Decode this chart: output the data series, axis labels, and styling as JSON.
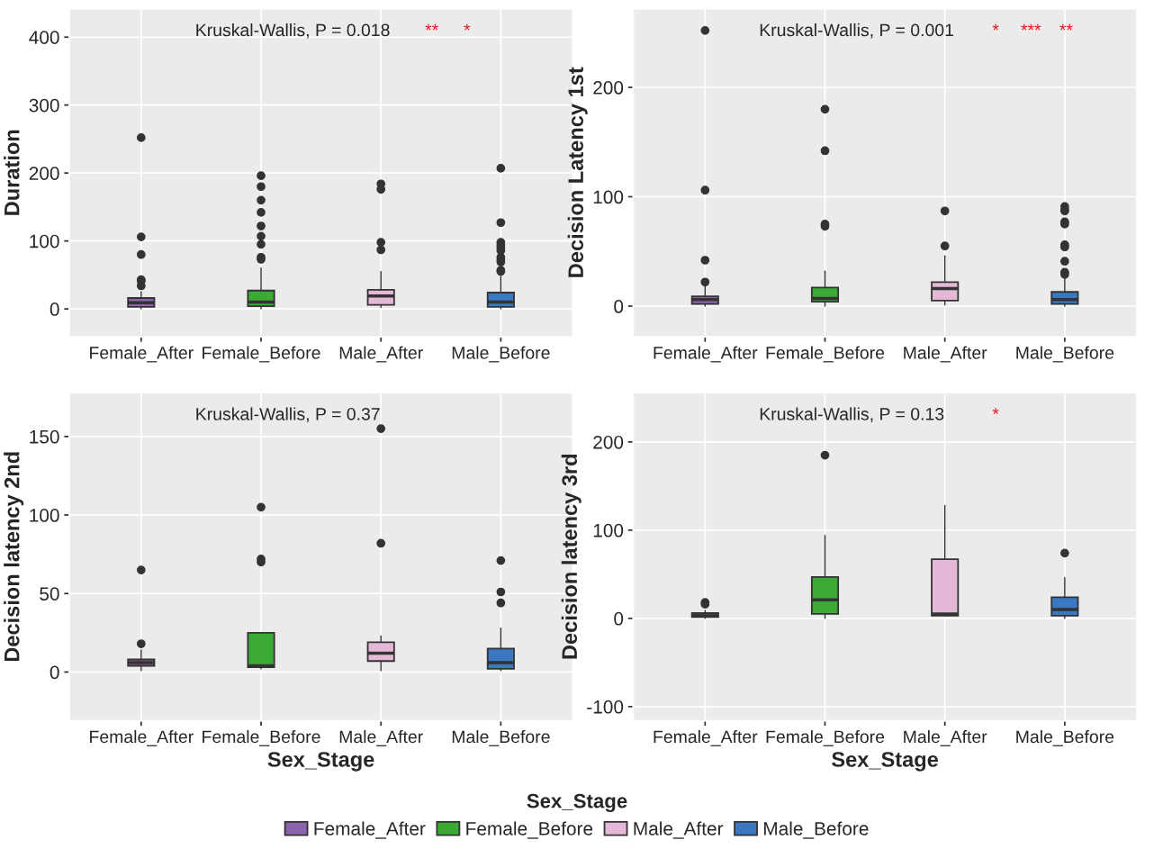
{
  "chart_data": [
    {
      "type": "box",
      "ylabel": "Duration",
      "categories": [
        "Female_After",
        "Female_Before",
        "Male_After",
        "Male_Before"
      ],
      "series": [
        {
          "color": "#8a63ac",
          "boxes": [
            {
              "low": 0,
              "q1": 3,
              "median": 9,
              "q3": 16,
              "high": 25,
              "outliers": [
                252,
                106,
                80,
                43,
                41,
                34
              ]
            },
            null,
            null,
            null
          ]
        },
        {
          "color": "#3aaa35",
          "boxes": [
            null,
            {
              "low": 0,
              "q1": 4,
              "median": 10,
              "q3": 27,
              "high": 60,
              "outliers": [
                196,
                180,
                160,
                142,
                122,
                107,
                95,
                76,
                73
              ]
            },
            null,
            null
          ]
        },
        {
          "color": "#e5b8d8",
          "boxes": [
            null,
            null,
            {
              "low": 2,
              "q1": 6,
              "median": 19,
              "q3": 28,
              "high": 55,
              "outliers": [
                184,
                176,
                98,
                87
              ]
            },
            null
          ]
        },
        {
          "color": "#3b78c2",
          "boxes": [
            null,
            null,
            null,
            {
              "low": 0,
              "q1": 3,
              "median": 10,
              "q3": 24,
              "high": 48,
              "outliers": [
                207,
                127,
                98,
                94,
                90,
                86,
                76,
                72,
                69,
                57,
                55
              ]
            }
          ]
        }
      ],
      "ylim": [
        -41,
        442
      ],
      "yticks": [
        0,
        100,
        200,
        300,
        400
      ],
      "grid": true,
      "annotations": [
        "Kruskal-Wallis, P = 0.018",
        "**",
        "*"
      ]
    },
    {
      "type": "box",
      "ylabel": "Decision Latency 1st",
      "categories": [
        "Female_After",
        "Female_Before",
        "Male_After",
        "Male_Before"
      ],
      "series": [
        {
          "color": "#8a63ac",
          "boxes": [
            {
              "low": 0,
              "q1": 2,
              "median": 6,
              "q3": 9,
              "high": 20,
              "outliers": [
                252,
                106,
                42,
                22
              ]
            },
            null,
            null,
            null
          ]
        },
        {
          "color": "#3aaa35",
          "boxes": [
            null,
            {
              "low": 0,
              "q1": 4,
              "median": 7,
              "q3": 17,
              "high": 32,
              "outliers": [
                180,
                142,
                75,
                73
              ]
            },
            null,
            null
          ]
        },
        {
          "color": "#e5b8d8",
          "boxes": [
            null,
            null,
            {
              "low": 1,
              "q1": 5,
              "median": 16,
              "q3": 22,
              "high": 46,
              "outliers": [
                87,
                55
              ]
            },
            null
          ]
        },
        {
          "color": "#3b78c2",
          "boxes": [
            null,
            null,
            null,
            {
              "low": 0,
              "q1": 2,
              "median": 6,
              "q3": 13,
              "high": 26,
              "outliers": [
                91,
                88,
                87,
                77,
                75,
                56,
                54,
                41,
                31,
                29
              ]
            }
          ]
        }
      ],
      "ylim": [
        -28,
        272
      ],
      "yticks": [
        0,
        100,
        200
      ],
      "grid": true,
      "annotations": [
        "Kruskal-Wallis, P = 0.001",
        "*",
        "***",
        "**"
      ]
    },
    {
      "type": "box",
      "xlabel": "Sex_Stage",
      "ylabel": "Decision latency 2nd",
      "categories": [
        "Female_After",
        "Female_Before",
        "Male_After",
        "Male_Before"
      ],
      "series": [
        {
          "color": "#8a63ac",
          "boxes": [
            {
              "low": 1,
              "q1": 4,
              "median": 6,
              "q3": 8,
              "high": 14,
              "outliers": [
                65,
                18
              ]
            },
            null,
            null,
            null
          ]
        },
        {
          "color": "#3aaa35",
          "boxes": [
            null,
            {
              "low": 2,
              "q1": 3,
              "median": 4,
              "q3": 25,
              "high": 25,
              "outliers": [
                105,
                72,
                70
              ]
            },
            null,
            null
          ]
        },
        {
          "color": "#e5b8d8",
          "boxes": [
            null,
            null,
            {
              "low": 1,
              "q1": 7,
              "median": 12,
              "q3": 19,
              "high": 23,
              "outliers": [
                155,
                82
              ]
            },
            null
          ]
        },
        {
          "color": "#3b78c2",
          "boxes": [
            null,
            null,
            null,
            {
              "low": 1,
              "q1": 2,
              "median": 6,
              "q3": 15,
              "high": 28,
              "outliers": [
                71,
                51,
                44
              ]
            }
          ]
        }
      ],
      "ylim": [
        -31,
        178
      ],
      "yticks": [
        0,
        50,
        100,
        150
      ],
      "grid": true,
      "annotations": [
        "Kruskal-Wallis, P = 0.37"
      ]
    },
    {
      "type": "box",
      "xlabel": "Sex_Stage",
      "ylabel": "Decision latency 3rd",
      "categories": [
        "Female_After",
        "Female_Before",
        "Male_After",
        "Male_Before"
      ],
      "series": [
        {
          "name": "Female_After",
          "color": "#8a63ac",
          "boxes": [
            {
              "low": 0,
              "q1": 1.5,
              "median": 3,
              "q3": 6,
              "high": 9,
              "outliers": [
                18,
                16
              ]
            },
            null,
            null,
            null
          ]
        },
        {
          "name": "Female_Before",
          "color": "#3aaa35",
          "boxes": [
            null,
            {
              "low": 0,
              "q1": 5,
              "median": 21,
              "q3": 47,
              "high": 94,
              "outliers": [
                185
              ]
            },
            null,
            null
          ]
        },
        {
          "name": "Male_After",
          "color": "#e5b8d8",
          "boxes": [
            null,
            null,
            {
              "low": 3,
              "q1": 3,
              "median": 5,
              "q3": 67,
              "high": 128
            },
            null
          ]
        },
        {
          "name": "Male_Before",
          "color": "#3b78c2",
          "boxes": [
            null,
            null,
            null,
            {
              "low": 0,
              "q1": 3,
              "median": 10,
              "q3": 24,
              "high": 46,
              "outliers": [
                74
              ]
            }
          ]
        }
      ],
      "ylim": [
        -116,
        256
      ],
      "yticks": [
        -100,
        0,
        100,
        200
      ],
      "grid": true,
      "legend": "bottom",
      "legend_title": "Sex_Stage",
      "annotations": [
        "Kruskal-Wallis, P = 0.13",
        "*"
      ]
    }
  ]
}
